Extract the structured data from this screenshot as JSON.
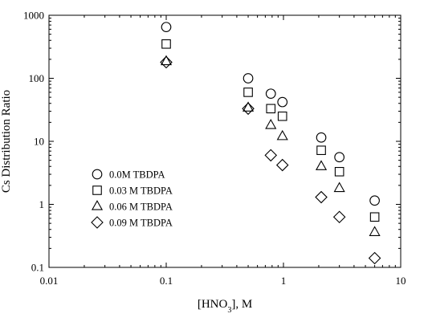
{
  "chart_data": {
    "type": "scatter",
    "title": "",
    "ylabel": "Cs Distribution Ratio",
    "xlabel": {
      "prefix": "[HNO",
      "sub": "3",
      "suffix": "], M"
    },
    "xscale": "log",
    "yscale": "log",
    "xlim": [
      0.01,
      10
    ],
    "ylim": [
      0.1,
      1000
    ],
    "x_ticks": [
      0.01,
      0.1,
      1,
      10
    ],
    "x_tick_labels": [
      "0.01",
      "0.1",
      "1",
      "10"
    ],
    "y_ticks": [
      0.1,
      1,
      10,
      100,
      1000
    ],
    "y_tick_labels": [
      "0.1",
      "1",
      "10",
      "100",
      "1000"
    ],
    "grid": false,
    "legend_position": "left",
    "series": [
      {
        "name": "0.0M TBDPA",
        "marker": "circle",
        "x": [
          0.1,
          0.5,
          0.78,
          0.98,
          2.1,
          3.0,
          6.0
        ],
        "y": [
          650,
          100,
          57,
          42,
          11.5,
          5.6,
          1.15
        ]
      },
      {
        "name": "0.03 M TBDPA",
        "marker": "square",
        "x": [
          0.1,
          0.5,
          0.78,
          0.98,
          2.1,
          3.0,
          6.0
        ],
        "y": [
          350,
          60,
          33,
          25,
          7.2,
          3.3,
          0.63
        ]
      },
      {
        "name": "0.06 M TBDPA",
        "marker": "triangle",
        "x": [
          0.1,
          0.5,
          0.78,
          0.98,
          2.1,
          3.0,
          6.0
        ],
        "y": [
          185,
          34,
          18,
          12,
          4.0,
          1.8,
          0.36
        ]
      },
      {
        "name": "0.09 M TBDPA",
        "marker": "diamond",
        "x": [
          0.1,
          0.5,
          0.78,
          0.98,
          2.1,
          3.0,
          6.0
        ],
        "y": [
          180,
          33,
          6.0,
          4.2,
          1.3,
          0.63,
          0.14
        ]
      }
    ]
  }
}
